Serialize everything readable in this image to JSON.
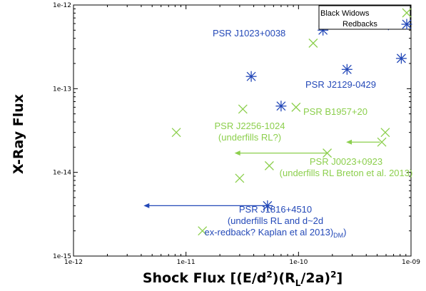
{
  "chart_data": {
    "type": "scatter",
    "x_scale": "log",
    "y_scale": "log",
    "xlim": [
      1e-12,
      1e-09
    ],
    "ylim": [
      1e-15,
      1e-12
    ],
    "x_ticks": [
      "1e-12",
      "1e-11",
      "1e-10",
      "1e-09"
    ],
    "y_ticks": [
      "1e-15",
      "1e-14",
      "1e-13",
      "1e-12"
    ],
    "xlabel": {
      "main": "Shock Flux [(E/d",
      "sup1": "2",
      "mid": ")(R",
      "sub": "L",
      "end": "/2a)",
      "sup2": "2",
      "close": "]"
    },
    "ylabel": "X-Ray Flux",
    "grid": false,
    "legend_position": "top-right",
    "colors": {
      "black_widows": "#8ccf4d",
      "redbacks": "#2449b8"
    },
    "series": [
      {
        "name": "Black Widows",
        "marker": "x",
        "points": [
          [
            6.5e-10,
            7.9e-13
          ],
          [
            1.35e-10,
            3.5e-13
          ],
          [
            3.2e-11,
            5.7e-14
          ],
          [
            9.5e-11,
            6e-14
          ],
          [
            8.2e-12,
            3e-14
          ],
          [
            5.9e-10,
            3e-14
          ],
          [
            5.5e-10,
            2.3e-14
          ],
          [
            1.8e-10,
            1.7e-14
          ],
          [
            5.5e-11,
            1.2e-14
          ],
          [
            3e-11,
            8.5e-15
          ],
          [
            1.4e-11,
            2e-15
          ]
        ]
      },
      {
        "name": "Redbacks",
        "marker": "asterisk",
        "points": [
          [
            1.65e-10,
            5e-13
          ],
          [
            6.3e-10,
            5.8e-13
          ],
          [
            8.2e-10,
            2.3e-13
          ],
          [
            2.7e-10,
            1.7e-13
          ],
          [
            3.8e-11,
            1.4e-13
          ],
          [
            7e-11,
            6.2e-14
          ],
          [
            5.3e-11,
            4e-15
          ]
        ]
      }
    ],
    "upper_limit_arrows": [
      {
        "series": "Black Widows",
        "from": [
          5.3e-10,
          2.3e-14
        ],
        "to": [
          2.65e-10,
          2.3e-14
        ]
      },
      {
        "series": "Black Widows",
        "from": [
          1.8e-10,
          1.7e-14
        ],
        "to": [
          2.7e-11,
          1.7e-14
        ]
      },
      {
        "series": "Redbacks",
        "from": [
          5.3e-11,
          4e-15
        ],
        "to": [
          4.2e-12,
          4e-15
        ]
      }
    ],
    "annotations": [
      {
        "series": "Redbacks",
        "lines": [
          "PSR J1023+0038"
        ]
      },
      {
        "series": "Redbacks",
        "lines": [
          "PSR J2129-0429"
        ]
      },
      {
        "series": "Black Widows",
        "lines": [
          "PSR B1957+20"
        ]
      },
      {
        "series": "Black Widows",
        "lines": [
          "PSR J2256-1024",
          "(underfills RL?)"
        ]
      },
      {
        "series": "Black Widows",
        "lines": [
          "PSR J0023+0923",
          "(underfills RL Breton et al. 2013)"
        ]
      },
      {
        "series": "Redbacks",
        "lines": [
          "PSR J1816+4510",
          "(underfills RL and d~2d",
          "ex-redback? Kaplan et al 2013)"
        ],
        "sub_suffix": "DM"
      }
    ]
  }
}
